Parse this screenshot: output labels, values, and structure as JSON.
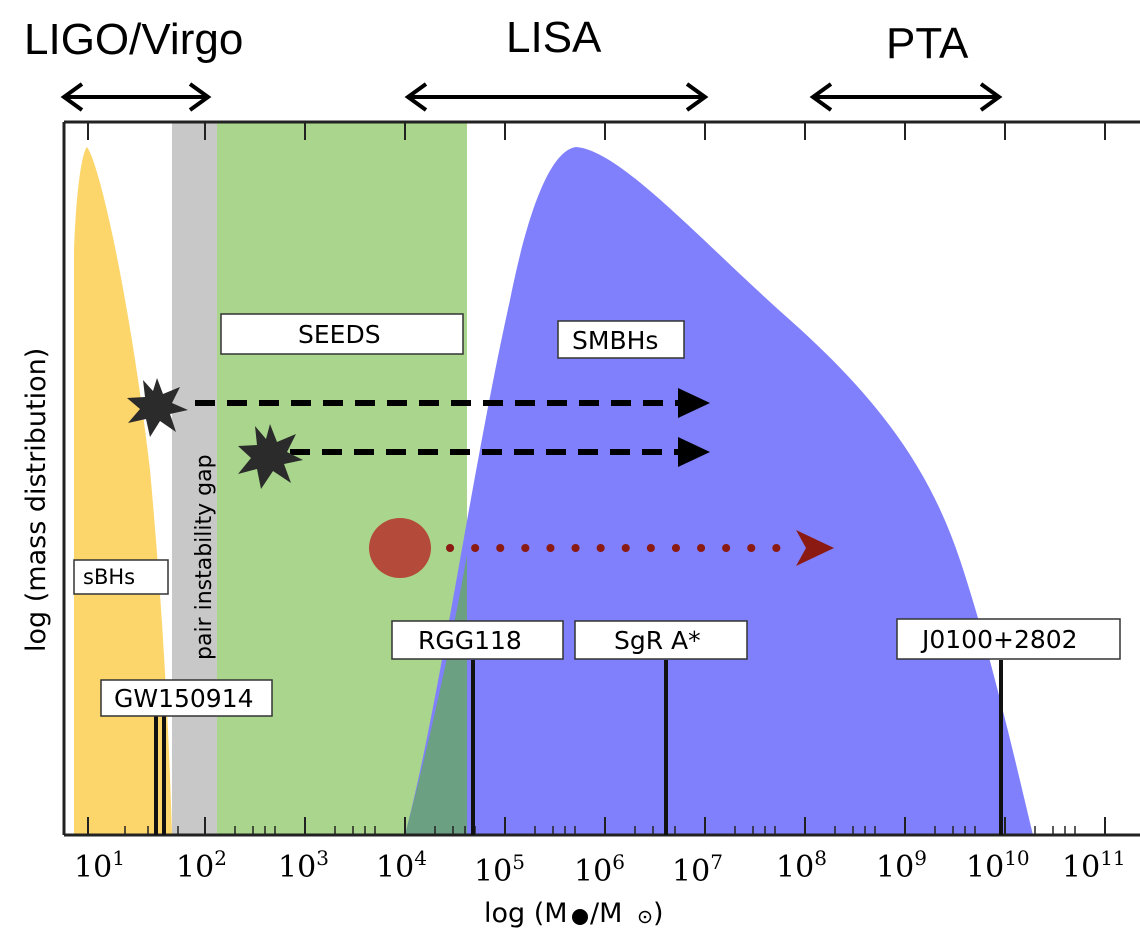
{
  "titles": {
    "ligo": "LIGO/Virgo",
    "lisa": "LISA",
    "pta": "PTA"
  },
  "axes": {
    "ylabel": "log (mass distribution)",
    "xlabel_prefix": "log (M",
    "xlabel_suffix": "/M",
    "xlabel_end": ")",
    "tick_base": "10",
    "tick_exponents": [
      "1",
      "2",
      "3",
      "4",
      "5",
      "6",
      "7",
      "8",
      "9",
      "10",
      "11"
    ]
  },
  "labels": {
    "seeds": "SEEDS",
    "smbhs": "SMBHs",
    "sbhs": "sBHs",
    "gw": "GW150914",
    "rgg": "RGG118",
    "sgr": "SgR A*",
    "j0100": "J0100+2802",
    "gap": "pair instability gap"
  },
  "colors": {
    "sbh_fill": "#fcd56b",
    "gap_fill": "#c8c8c8",
    "seeds_fill": "#a9d68c",
    "smbh_fill": "#8080fc",
    "overlap_fill": "#6ba082",
    "star": "#2b2b2b",
    "ball": "#b34a3a",
    "dotted": "#8b1a12"
  }
}
